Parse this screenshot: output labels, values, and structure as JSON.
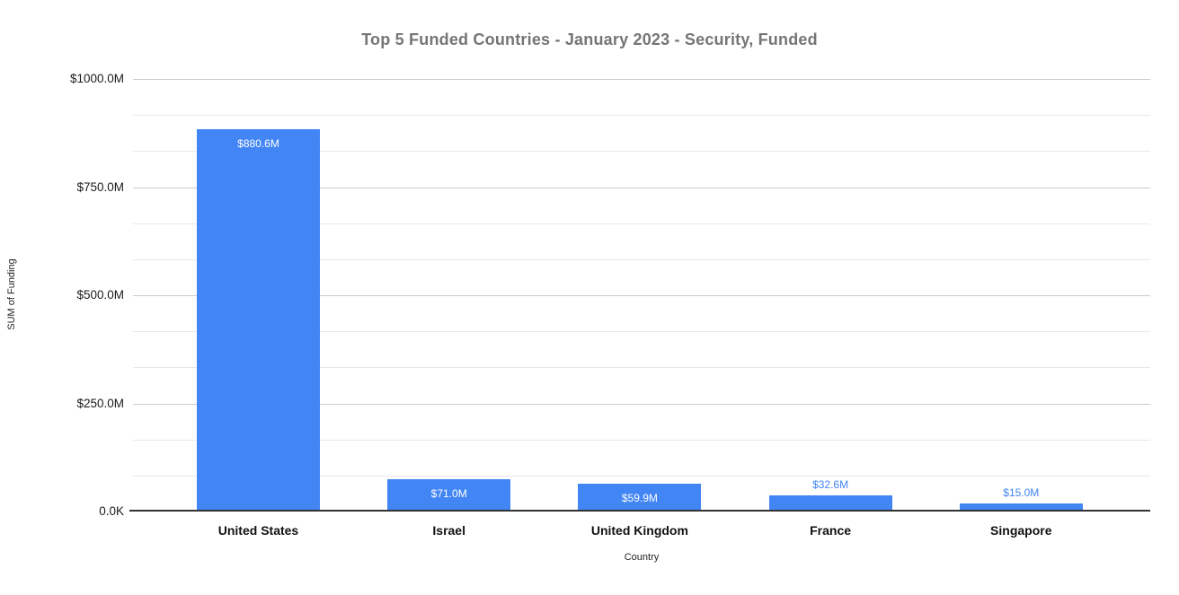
{
  "chart_data": {
    "type": "bar",
    "title": "Top 5 Funded Countries - January 2023 - Security, Funded",
    "xlabel": "Country",
    "ylabel": "SUM of Funding",
    "categories": [
      "United States",
      "Israel",
      "United Kingdom",
      "France",
      "Singapore"
    ],
    "values": [
      880.6,
      71.0,
      59.9,
      32.6,
      15.0
    ],
    "value_labels": [
      "$880.6M",
      "$71.0M",
      "$59.9M",
      "$32.6M",
      "$15.0M"
    ],
    "ylim": [
      0,
      1000
    ],
    "yticks": [
      {
        "value": 1000,
        "label": "$1000.0M"
      },
      {
        "value": 750,
        "label": "$750.0M"
      },
      {
        "value": 500,
        "label": "$500.0M"
      },
      {
        "value": 250,
        "label": "$250.0M"
      },
      {
        "value": 0,
        "label": "0.0K"
      }
    ],
    "grid": {
      "major_step": 250,
      "minor_step": 83.3333,
      "minor_lines_between_major": 2
    },
    "legend": "none",
    "colors": {
      "bar": "#4285f4",
      "title_text": "#757575",
      "value_label_inside": "#ffffff",
      "value_label_outside": "#4285f4",
      "axis_line": "#333333",
      "major_gridline": "#cccccc",
      "minor_gridline": "#e8e8e8",
      "tick_text": "#1a1a1a",
      "category_text": "#111111"
    }
  }
}
